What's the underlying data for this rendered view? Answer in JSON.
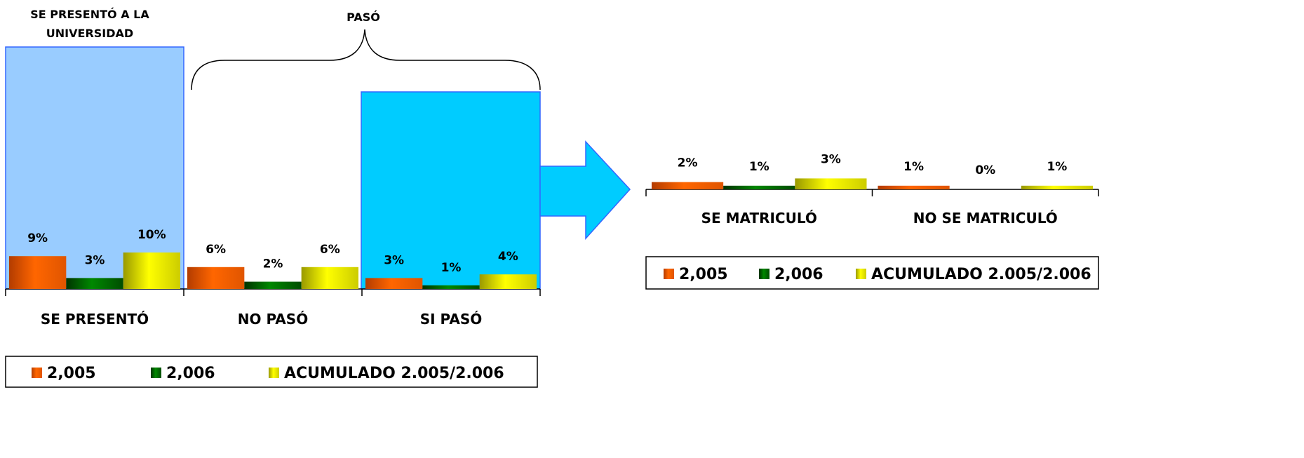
{
  "annotations": {
    "box_title_line1": "SE PRESENTÓ A LA",
    "box_title_line2": "UNIVERSIDAD",
    "brace_label": "PASÓ"
  },
  "colors": {
    "s2005": "#FF6600",
    "s2006": "#006600",
    "acum": "#FFFF00",
    "box_presento": "#99CCFF",
    "box_paso": "#00CCFF",
    "arrow": "#00CCFF",
    "outline": "#3366FF"
  },
  "chart_data": [
    {
      "type": "bar",
      "categories": [
        "SE PRESENTÓ",
        "NO PASÓ",
        "SI PASÓ"
      ],
      "series": [
        {
          "name": "2,005",
          "values": [
            9,
            6,
            3
          ],
          "labels": [
            "9%",
            "6%",
            "3%"
          ],
          "color": "#FF6600"
        },
        {
          "name": "2,006",
          "values": [
            3,
            2,
            1
          ],
          "labels": [
            "3%",
            "2%",
            "1%"
          ],
          "color": "#006600"
        },
        {
          "name": "ACUMULADO 2.005/2.006",
          "values": [
            10,
            6,
            4
          ],
          "labels": [
            "10%",
            "6%",
            "4%"
          ],
          "color": "#FFFF00"
        }
      ],
      "unit": "%",
      "grid": false,
      "legend_position": "bottom"
    },
    {
      "type": "bar",
      "categories": [
        "SE MATRICULÓ",
        "NO SE MATRICULÓ"
      ],
      "series": [
        {
          "name": "2,005",
          "values": [
            2,
            1
          ],
          "labels": [
            "2%",
            "1%"
          ],
          "color": "#FF6600"
        },
        {
          "name": "2,006",
          "values": [
            1,
            0
          ],
          "labels": [
            "1%",
            "0%"
          ],
          "color": "#006600"
        },
        {
          "name": "ACUMULADO 2.005/2.006",
          "values": [
            3,
            1
          ],
          "labels": [
            "3%",
            "1%"
          ],
          "color": "#FFFF00"
        }
      ],
      "unit": "%",
      "grid": false,
      "legend_position": "bottom"
    }
  ]
}
